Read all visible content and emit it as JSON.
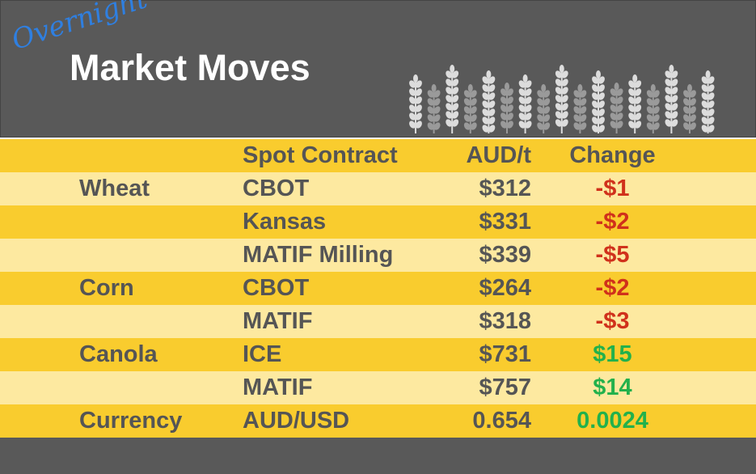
{
  "header": {
    "script": "Overnight",
    "title": "Market Moves"
  },
  "table": {
    "columns": [
      "Spot Contract",
      "AUD/t",
      "Change"
    ],
    "rows": [
      [
        "Wheat",
        "CBOT",
        "$312",
        "-$1"
      ],
      [
        null,
        "Kansas",
        "$331",
        "-$2"
      ],
      [
        null,
        "MATIF Milling",
        "$339",
        "-$5"
      ],
      [
        "Corn",
        "CBOT",
        "$264",
        "-$2"
      ],
      [
        null,
        "MATIF",
        "$318",
        "-$3"
      ],
      [
        "Canola",
        "ICE",
        "$731",
        "$15"
      ],
      [
        null,
        "MATIF",
        "$757",
        "$14"
      ],
      [
        "Currency",
        "AUD/USD",
        "0.654",
        "0.0024"
      ]
    ]
  }
}
